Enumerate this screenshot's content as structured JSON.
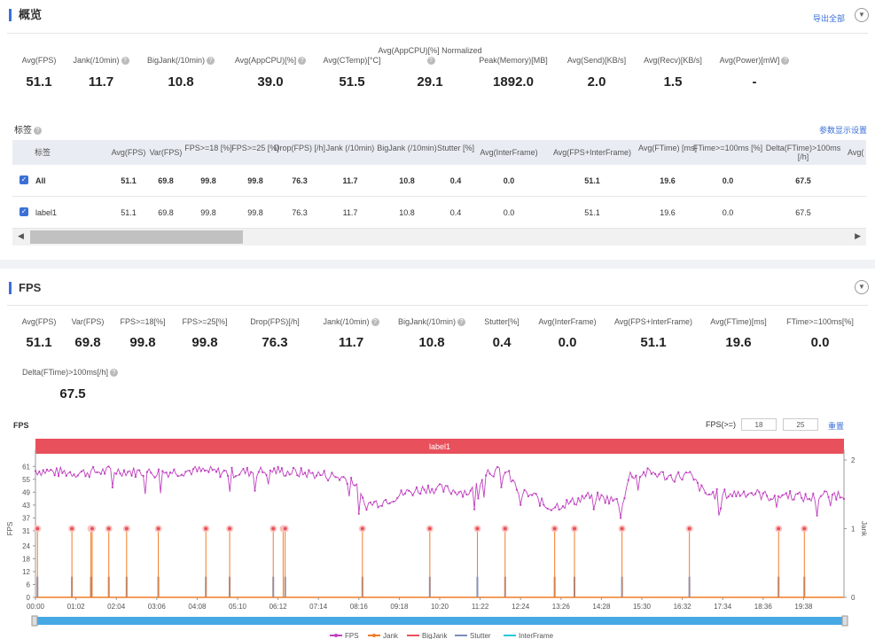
{
  "overview": {
    "title": "概览",
    "export_all": "导出全部",
    "collapse_icon": "chevron-down-icon",
    "metrics": [
      {
        "label": "Avg(FPS)",
        "value": "51.1",
        "help": false
      },
      {
        "label": "Jank(/10min)",
        "value": "11.7",
        "help": true
      },
      {
        "label": "BigJank(/10min)",
        "value": "10.8",
        "help": true
      },
      {
        "label": "Avg(AppCPU)[%]",
        "value": "39.0",
        "help": true
      },
      {
        "label": "Avg(CTemp)[°C]",
        "value": "51.5",
        "help": false
      },
      {
        "label": "Avg(AppCPU)[%] Normalized",
        "value": "29.1",
        "help": true
      },
      {
        "label": "Peak(Memory)[MB]",
        "value": "1892.0",
        "help": false
      },
      {
        "label": "Avg(Send)[KB/s]",
        "value": "2.0",
        "help": false
      },
      {
        "label": "Avg(Recv)[KB/s]",
        "value": "1.5",
        "help": false
      },
      {
        "label": "Avg(Power)[mW]",
        "value": "-",
        "help": true
      }
    ],
    "tags_title": "标签",
    "param_settings": "参数显示设置",
    "table": {
      "headers": [
        "标签",
        "Avg(FPS)",
        "Var(FPS)",
        "FPS>=18 [%]",
        "FPS>=25 [%]",
        "Drop(FPS) [/h]",
        "Jank (/10min)",
        "BigJank (/10min)",
        "Stutter [%]",
        "Avg(InterFrame)",
        "Avg(FPS+InterFrame)",
        "Avg(FTime) [ms]",
        "FTime>=100ms [%]",
        "Delta(FTime)>100ms [/h]",
        "Avg("
      ],
      "rows": [
        {
          "cells": [
            "All",
            "51.1",
            "69.8",
            "99.8",
            "99.8",
            "76.3",
            "11.7",
            "10.8",
            "0.4",
            "0.0",
            "51.1",
            "19.6",
            "0.0",
            "67.5"
          ],
          "bold": true
        },
        {
          "cells": [
            "label1",
            "51.1",
            "69.8",
            "99.8",
            "99.8",
            "76.3",
            "11.7",
            "10.8",
            "0.4",
            "0.0",
            "51.1",
            "19.6",
            "0.0",
            "67.5"
          ],
          "bold": false
        }
      ]
    }
  },
  "fps_section": {
    "title": "FPS",
    "metrics": [
      {
        "label": "Avg(FPS)",
        "value": "51.1",
        "help": false
      },
      {
        "label": "Var(FPS)",
        "value": "69.8",
        "help": false
      },
      {
        "label": "FPS>=18[%]",
        "value": "99.8",
        "help": false
      },
      {
        "label": "FPS>=25[%]",
        "value": "99.8",
        "help": false
      },
      {
        "label": "Drop(FPS)[/h]",
        "value": "76.3",
        "help": false
      },
      {
        "label": "Jank(/10min)",
        "value": "11.7",
        "help": true
      },
      {
        "label": "BigJank(/10min)",
        "value": "10.8",
        "help": true
      },
      {
        "label": "Stutter[%]",
        "value": "0.4",
        "help": false
      },
      {
        "label": "Avg(InterFrame)",
        "value": "0.0",
        "help": false
      },
      {
        "label": "Avg(FPS+InterFrame)",
        "value": "51.1",
        "help": false
      },
      {
        "label": "Avg(FTime)[ms]",
        "value": "19.6",
        "help": false
      },
      {
        "label": "FTime>=100ms[%]",
        "value": "0.0",
        "help": false
      },
      {
        "label": "Delta(FTime)>100ms[/h]",
        "value": "67.5",
        "help": true
      }
    ],
    "chart_title": "FPS",
    "threshold_label": "FPS(>=)",
    "threshold_1": "18",
    "threshold_2": "25",
    "reset": "重置"
  },
  "chart_data": {
    "type": "line",
    "title": "FPS",
    "band_label": "label1",
    "ylabel": "FPS",
    "y2label": "Jank",
    "y_ticks": [
      0,
      6,
      12,
      18,
      24,
      31,
      37,
      43,
      49,
      55,
      61
    ],
    "y2_ticks": [
      0,
      1,
      2
    ],
    "ylim": [
      0,
      64
    ],
    "y2lim": [
      0,
      2
    ],
    "x_ticks": [
      "00:00",
      "01:02",
      "02:04",
      "03:06",
      "04:08",
      "05:10",
      "06:12",
      "07:14",
      "08:16",
      "09:18",
      "10:20",
      "11:22",
      "12:24",
      "13:26",
      "14:28",
      "15:30",
      "16:32",
      "17:34",
      "18:36",
      "19:38"
    ],
    "x_range_minutes": [
      0,
      20.4
    ],
    "fps_profile": [
      [
        0,
        59
      ],
      [
        1.0,
        58
      ],
      [
        2.0,
        59
      ],
      [
        3.0,
        58
      ],
      [
        4.0,
        59
      ],
      [
        5.0,
        58
      ],
      [
        6.0,
        59
      ],
      [
        7.3,
        57
      ],
      [
        8.0,
        55
      ],
      [
        8.3,
        43
      ],
      [
        8.8,
        45
      ],
      [
        9.4,
        49
      ],
      [
        9.9,
        51
      ],
      [
        10.4,
        50
      ],
      [
        11.0,
        49
      ],
      [
        11.4,
        59
      ],
      [
        11.9,
        58
      ],
      [
        12.2,
        49
      ],
      [
        12.6,
        47
      ],
      [
        12.9,
        42
      ],
      [
        13.2,
        43
      ],
      [
        13.5,
        44
      ],
      [
        13.9,
        47
      ],
      [
        14.4,
        46
      ],
      [
        14.8,
        44
      ],
      [
        15.0,
        57
      ],
      [
        15.6,
        58
      ],
      [
        16.0,
        56
      ],
      [
        16.5,
        57
      ],
      [
        16.9,
        48
      ],
      [
        17.5,
        48
      ],
      [
        18.0,
        49
      ],
      [
        18.5,
        47
      ],
      [
        19.0,
        48
      ],
      [
        19.5,
        46
      ],
      [
        20.0,
        48
      ]
    ],
    "jank_events_minutes": [
      0.05,
      0.92,
      1.4,
      1.43,
      1.85,
      2.3,
      3.1,
      4.3,
      4.9,
      6.0,
      6.25,
      6.3,
      8.25,
      9.95,
      11.15,
      11.85,
      13.1,
      13.6,
      14.8,
      16.5,
      18.75,
      19.4
    ],
    "stutter_events_minutes": [
      0.05,
      0.92,
      1.4,
      1.85,
      2.3,
      3.1,
      4.3,
      4.9,
      6.0,
      6.3,
      8.25,
      9.95,
      11.15,
      11.85,
      13.1,
      13.6,
      14.8,
      16.5,
      18.75,
      19.4
    ],
    "legend": [
      "FPS",
      "Jank",
      "BigJank",
      "Stutter",
      "InterFrame"
    ],
    "colors": {
      "fps": "#c040c0",
      "jank": "#f07d27",
      "bigjank": "#e8505b",
      "stutter": "#7b8dbd",
      "interframe": "#29c7d8",
      "band": "#e8505b",
      "scroll": "#47a9e4"
    }
  }
}
